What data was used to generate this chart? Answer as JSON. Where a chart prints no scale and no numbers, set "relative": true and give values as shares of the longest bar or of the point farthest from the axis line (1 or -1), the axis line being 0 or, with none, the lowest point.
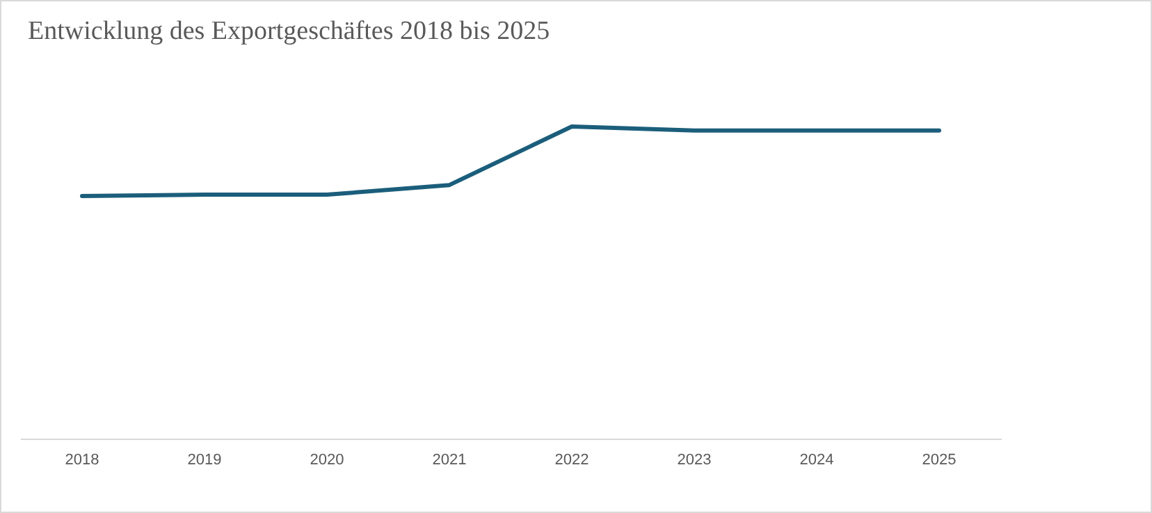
{
  "chart_data": {
    "type": "line",
    "title": "Entwicklung des Exportgeschäftes 2018 bis 2025",
    "relative": true,
    "categories": [
      "2018",
      "2019",
      "2020",
      "2021",
      "2022",
      "2023",
      "2024",
      "2025"
    ],
    "series": [
      {
        "color": "#1b5e7b",
        "values": [
          0.778,
          0.782,
          0.782,
          0.813,
          1,
          0.987,
          0.987,
          0.987
        ]
      }
    ],
    "marker": "none",
    "line_style": "solid"
  }
}
